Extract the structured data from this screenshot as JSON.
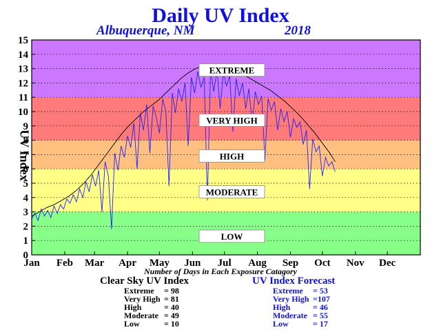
{
  "title": "Daily UV Index",
  "location": "Albuquerque, NM",
  "year": "2018",
  "colors": {
    "extreme": "#cc77ff",
    "very_high": "#ff7a7a",
    "high": "#ffc080",
    "moderate": "#ffff88",
    "low": "#88ff88",
    "clear_line": "#000000",
    "forecast_line": "#2020ff",
    "title": "#1010e0"
  },
  "chart_data": {
    "type": "line",
    "ylabel": "UV Index",
    "ylim": [
      0,
      15
    ],
    "yticks": [
      "0",
      "1",
      "2",
      "3",
      "4",
      "5",
      "6",
      "7",
      "8",
      "9",
      "10",
      "11",
      "12",
      "13",
      "14",
      "15"
    ],
    "x_labels": [
      "Jan",
      "Feb",
      "Mar",
      "Apr",
      "May",
      "Jun",
      "Jul",
      "Aug",
      "Sep",
      "Oct",
      "Nov",
      "Dec"
    ],
    "grid": true,
    "bands": [
      {
        "name": "LOW",
        "from": 0,
        "to": 3,
        "color_key": "low"
      },
      {
        "name": "MODERATE",
        "from": 3,
        "to": 6,
        "color_key": "moderate"
      },
      {
        "name": "HIGH",
        "from": 6,
        "to": 8,
        "color_key": "high"
      },
      {
        "name": "VERY HIGH",
        "from": 8,
        "to": 11,
        "color_key": "very_high"
      },
      {
        "name": "EXTREME",
        "from": 11,
        "to": 15,
        "color_key": "extreme"
      }
    ],
    "band_labels": [
      {
        "text": "EXTREME",
        "y": 12.9
      },
      {
        "text": "VERY HIGH",
        "y": 9.4
      },
      {
        "text": "HIGH",
        "y": 6.9
      },
      {
        "text": "MODERATE",
        "y": 4.4
      },
      {
        "text": "LOW",
        "y": 1.3
      }
    ],
    "series": [
      {
        "name": "Clear Sky UV Index",
        "color_key": "clear_line",
        "points": [
          [
            1,
            2.7
          ],
          [
            8,
            3.0
          ],
          [
            15,
            3.3
          ],
          [
            22,
            3.5
          ],
          [
            29,
            3.8
          ],
          [
            36,
            4.1
          ],
          [
            43,
            4.5
          ],
          [
            50,
            5.0
          ],
          [
            57,
            5.6
          ],
          [
            64,
            6.3
          ],
          [
            71,
            7.0
          ],
          [
            78,
            7.7
          ],
          [
            85,
            8.4
          ],
          [
            92,
            9.0
          ],
          [
            99,
            9.5
          ],
          [
            106,
            10.0
          ],
          [
            113,
            10.4
          ],
          [
            120,
            10.8
          ],
          [
            127,
            11.3
          ],
          [
            134,
            11.8
          ],
          [
            141,
            12.3
          ],
          [
            148,
            12.7
          ],
          [
            155,
            13.0
          ],
          [
            162,
            13.2
          ],
          [
            169,
            13.3
          ],
          [
            176,
            13.2
          ],
          [
            183,
            13.1
          ],
          [
            190,
            12.9
          ],
          [
            197,
            12.7
          ],
          [
            204,
            12.4
          ],
          [
            211,
            12.1
          ],
          [
            218,
            11.8
          ],
          [
            225,
            11.5
          ],
          [
            232,
            11.1
          ],
          [
            239,
            10.7
          ],
          [
            246,
            10.2
          ],
          [
            253,
            9.7
          ],
          [
            260,
            9.1
          ],
          [
            267,
            8.5
          ],
          [
            274,
            7.8
          ],
          [
            281,
            7.1
          ],
          [
            286,
            6.5
          ]
        ]
      },
      {
        "name": "UV Index Forecast",
        "color_key": "forecast_line",
        "points": [
          [
            1,
            2.5
          ],
          [
            4,
            2.9
          ],
          [
            7,
            2.4
          ],
          [
            10,
            3.2
          ],
          [
            13,
            2.7
          ],
          [
            16,
            3.1
          ],
          [
            19,
            2.6
          ],
          [
            22,
            3.4
          ],
          [
            25,
            2.9
          ],
          [
            28,
            3.5
          ],
          [
            31,
            3.2
          ],
          [
            34,
            3.9
          ],
          [
            37,
            3.6
          ],
          [
            40,
            4.2
          ],
          [
            43,
            3.7
          ],
          [
            46,
            4.6
          ],
          [
            49,
            4.0
          ],
          [
            52,
            5.1
          ],
          [
            55,
            4.4
          ],
          [
            58,
            5.6
          ],
          [
            61,
            4.8
          ],
          [
            64,
            5.9
          ],
          [
            67,
            3.0
          ],
          [
            70,
            6.5
          ],
          [
            73,
            5.5
          ],
          [
            76,
            1.8
          ],
          [
            79,
            7.1
          ],
          [
            82,
            5.9
          ],
          [
            85,
            7.6
          ],
          [
            88,
            6.8
          ],
          [
            91,
            8.3
          ],
          [
            94,
            7.5
          ],
          [
            97,
            9.2
          ],
          [
            100,
            6.0
          ],
          [
            103,
            9.9
          ],
          [
            106,
            8.7
          ],
          [
            109,
            10.5
          ],
          [
            112,
            7.1
          ],
          [
            115,
            10.4
          ],
          [
            118,
            9.6
          ],
          [
            121,
            8.5
          ],
          [
            124,
            10.9
          ],
          [
            127,
            10.0
          ],
          [
            130,
            4.8
          ],
          [
            133,
            11.3
          ],
          [
            136,
            9.9
          ],
          [
            139,
            11.6
          ],
          [
            142,
            10.7
          ],
          [
            145,
            12.0
          ],
          [
            148,
            7.6
          ],
          [
            151,
            12.4
          ],
          [
            154,
            11.3
          ],
          [
            157,
            12.8
          ],
          [
            160,
            11.7
          ],
          [
            163,
            12.4
          ],
          [
            166,
            3.8
          ],
          [
            169,
            13.0
          ],
          [
            172,
            11.4
          ],
          [
            175,
            12.9
          ],
          [
            178,
            10.2
          ],
          [
            181,
            12.7
          ],
          [
            184,
            11.8
          ],
          [
            187,
            12.5
          ],
          [
            190,
            8.6
          ],
          [
            193,
            12.3
          ],
          [
            196,
            11.1
          ],
          [
            199,
            12.0
          ],
          [
            202,
            10.2
          ],
          [
            205,
            11.6
          ],
          [
            208,
            9.2
          ],
          [
            211,
            11.4
          ],
          [
            214,
            10.5
          ],
          [
            217,
            11.1
          ],
          [
            220,
            6.6
          ],
          [
            223,
            10.9
          ],
          [
            226,
            10.1
          ],
          [
            229,
            10.7
          ],
          [
            232,
            8.7
          ],
          [
            235,
            10.2
          ],
          [
            238,
            9.3
          ],
          [
            241,
            10.0
          ],
          [
            244,
            8.2
          ],
          [
            247,
            9.5
          ],
          [
            250,
            8.9
          ],
          [
            253,
            9.3
          ],
          [
            256,
            7.7
          ],
          [
            259,
            8.7
          ],
          [
            262,
            4.6
          ],
          [
            265,
            8.1
          ],
          [
            268,
            7.2
          ],
          [
            271,
            7.6
          ],
          [
            274,
            5.5
          ],
          [
            277,
            6.8
          ],
          [
            280,
            6.2
          ],
          [
            283,
            6.5
          ],
          [
            286,
            5.8
          ]
        ]
      }
    ]
  },
  "counts_caption": "Number of Days in Each Exposure Catagory",
  "clear_sky": {
    "title": "Clear Sky UV Index",
    "rows": [
      {
        "label": "Extreme",
        "value": "= 98"
      },
      {
        "label": "Very High",
        "value": "= 81"
      },
      {
        "label": "High",
        "value": "= 40"
      },
      {
        "label": "Moderate",
        "value": "= 49"
      },
      {
        "label": "Low",
        "value": "= 10"
      }
    ]
  },
  "forecast": {
    "title": "UV Index Forecast",
    "rows": [
      {
        "label": "Extreme",
        "value": "= 53"
      },
      {
        "label": "Very High",
        "value": "=107"
      },
      {
        "label": "High",
        "value": "= 46"
      },
      {
        "label": "Moderate",
        "value": "= 55"
      },
      {
        "label": "Low",
        "value": "= 17"
      }
    ]
  }
}
